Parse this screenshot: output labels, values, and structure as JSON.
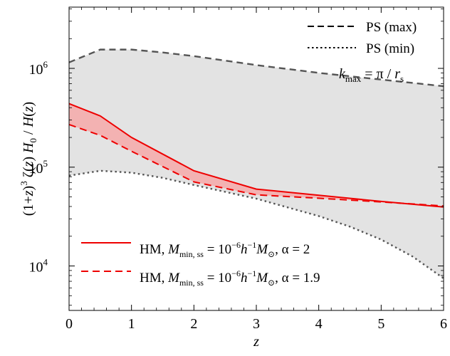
{
  "chart_data": {
    "type": "line",
    "xlabel": "z",
    "ylabel": "(1+z)^3 ζ(z) H_0 / H(z)",
    "ylabel_parts": {
      "a": "(1+",
      "b": "z",
      "c": ")",
      "d": "3",
      "e": " ζ(",
      "f": "z",
      "g": ") ",
      "h": "H",
      "i": "0",
      "j": " / ",
      "k": "H",
      "l": "(",
      "m": "z",
      "n": ")"
    },
    "xlim": [
      0,
      6
    ],
    "ylim_log10": [
      3.55,
      6.62
    ],
    "yscale": "log",
    "x_ticks": [
      0,
      1,
      2,
      3,
      4,
      5,
      6
    ],
    "x_tick_labels": [
      "0",
      "1",
      "2",
      "3",
      "4",
      "5",
      "6"
    ],
    "y_ticks_major": [
      4,
      5,
      6
    ],
    "y_tick_labels": [
      {
        "base": "10",
        "exp": "4"
      },
      {
        "base": "10",
        "exp": "5"
      },
      {
        "base": "10",
        "exp": "6"
      }
    ],
    "annotation": {
      "k": "k",
      "sub": "max",
      "rest": " = π / ",
      "r": "r",
      "rsub": "s"
    },
    "series": [
      {
        "name": "PS (max)",
        "style": "dashed",
        "color": "#555555",
        "x": [
          0,
          0.5,
          1.0,
          1.5,
          2.0,
          3.0,
          4.0,
          5.0,
          6.0
        ],
        "y": [
          1150000,
          1550000,
          1550000,
          1450000,
          1330000,
          1080000,
          900000,
          770000,
          660000
        ]
      },
      {
        "name": "PS (min)",
        "style": "dotted",
        "color": "#555555",
        "x": [
          0,
          0.5,
          1.0,
          1.5,
          2.0,
          3.0,
          4.0,
          4.5,
          5.0,
          5.5,
          6.0
        ],
        "y": [
          82000,
          92000,
          88000,
          78000,
          66000,
          48000,
          32000,
          25000,
          18500,
          12500,
          7500
        ]
      },
      {
        "name": "HM, α = 2",
        "style": "solid",
        "color": "#ee0000",
        "x": [
          0,
          0.5,
          1.0,
          2.0,
          3.0,
          4.0,
          5.0,
          6.0
        ],
        "y": [
          440000,
          330000,
          200000,
          92000,
          60000,
          52000,
          45000,
          39500
        ]
      },
      {
        "name": "HM, α = 1.9",
        "style": "dashed",
        "color": "#ee0000",
        "x": [
          0,
          0.5,
          1.0,
          2.0,
          3.0,
          4.0,
          5.0,
          6.0
        ],
        "y": [
          270000,
          210000,
          145000,
          71000,
          52500,
          48500,
          44500,
          40500
        ]
      }
    ],
    "legend_top": [
      {
        "label": "PS (max)",
        "style": "dashed"
      },
      {
        "label": "PS (min)",
        "style": "dotted"
      }
    ],
    "legend_bottom": [
      {
        "label_pre": "HM, ",
        "M": "M",
        "Msub": "min, ss",
        "eq": " = 10",
        "exp": "−6",
        "h": "h",
        "hexp": "−1",
        "M2": "M",
        "sun": "⊙",
        "alpha": ", α = 2",
        "style": "solid"
      },
      {
        "label_pre": "HM, ",
        "M": "M",
        "Msub": "min, ss",
        "eq": " = 10",
        "exp": "−6",
        "h": "h",
        "hexp": "−1",
        "M2": "M",
        "sun": "⊙",
        "alpha": ", α = 1.9",
        "style": "dashed"
      }
    ],
    "colors": {
      "band_gray": "#e3e3e3",
      "band_red": "#f3b2b2",
      "red": "#ee0000",
      "gray_line": "#555555"
    }
  }
}
